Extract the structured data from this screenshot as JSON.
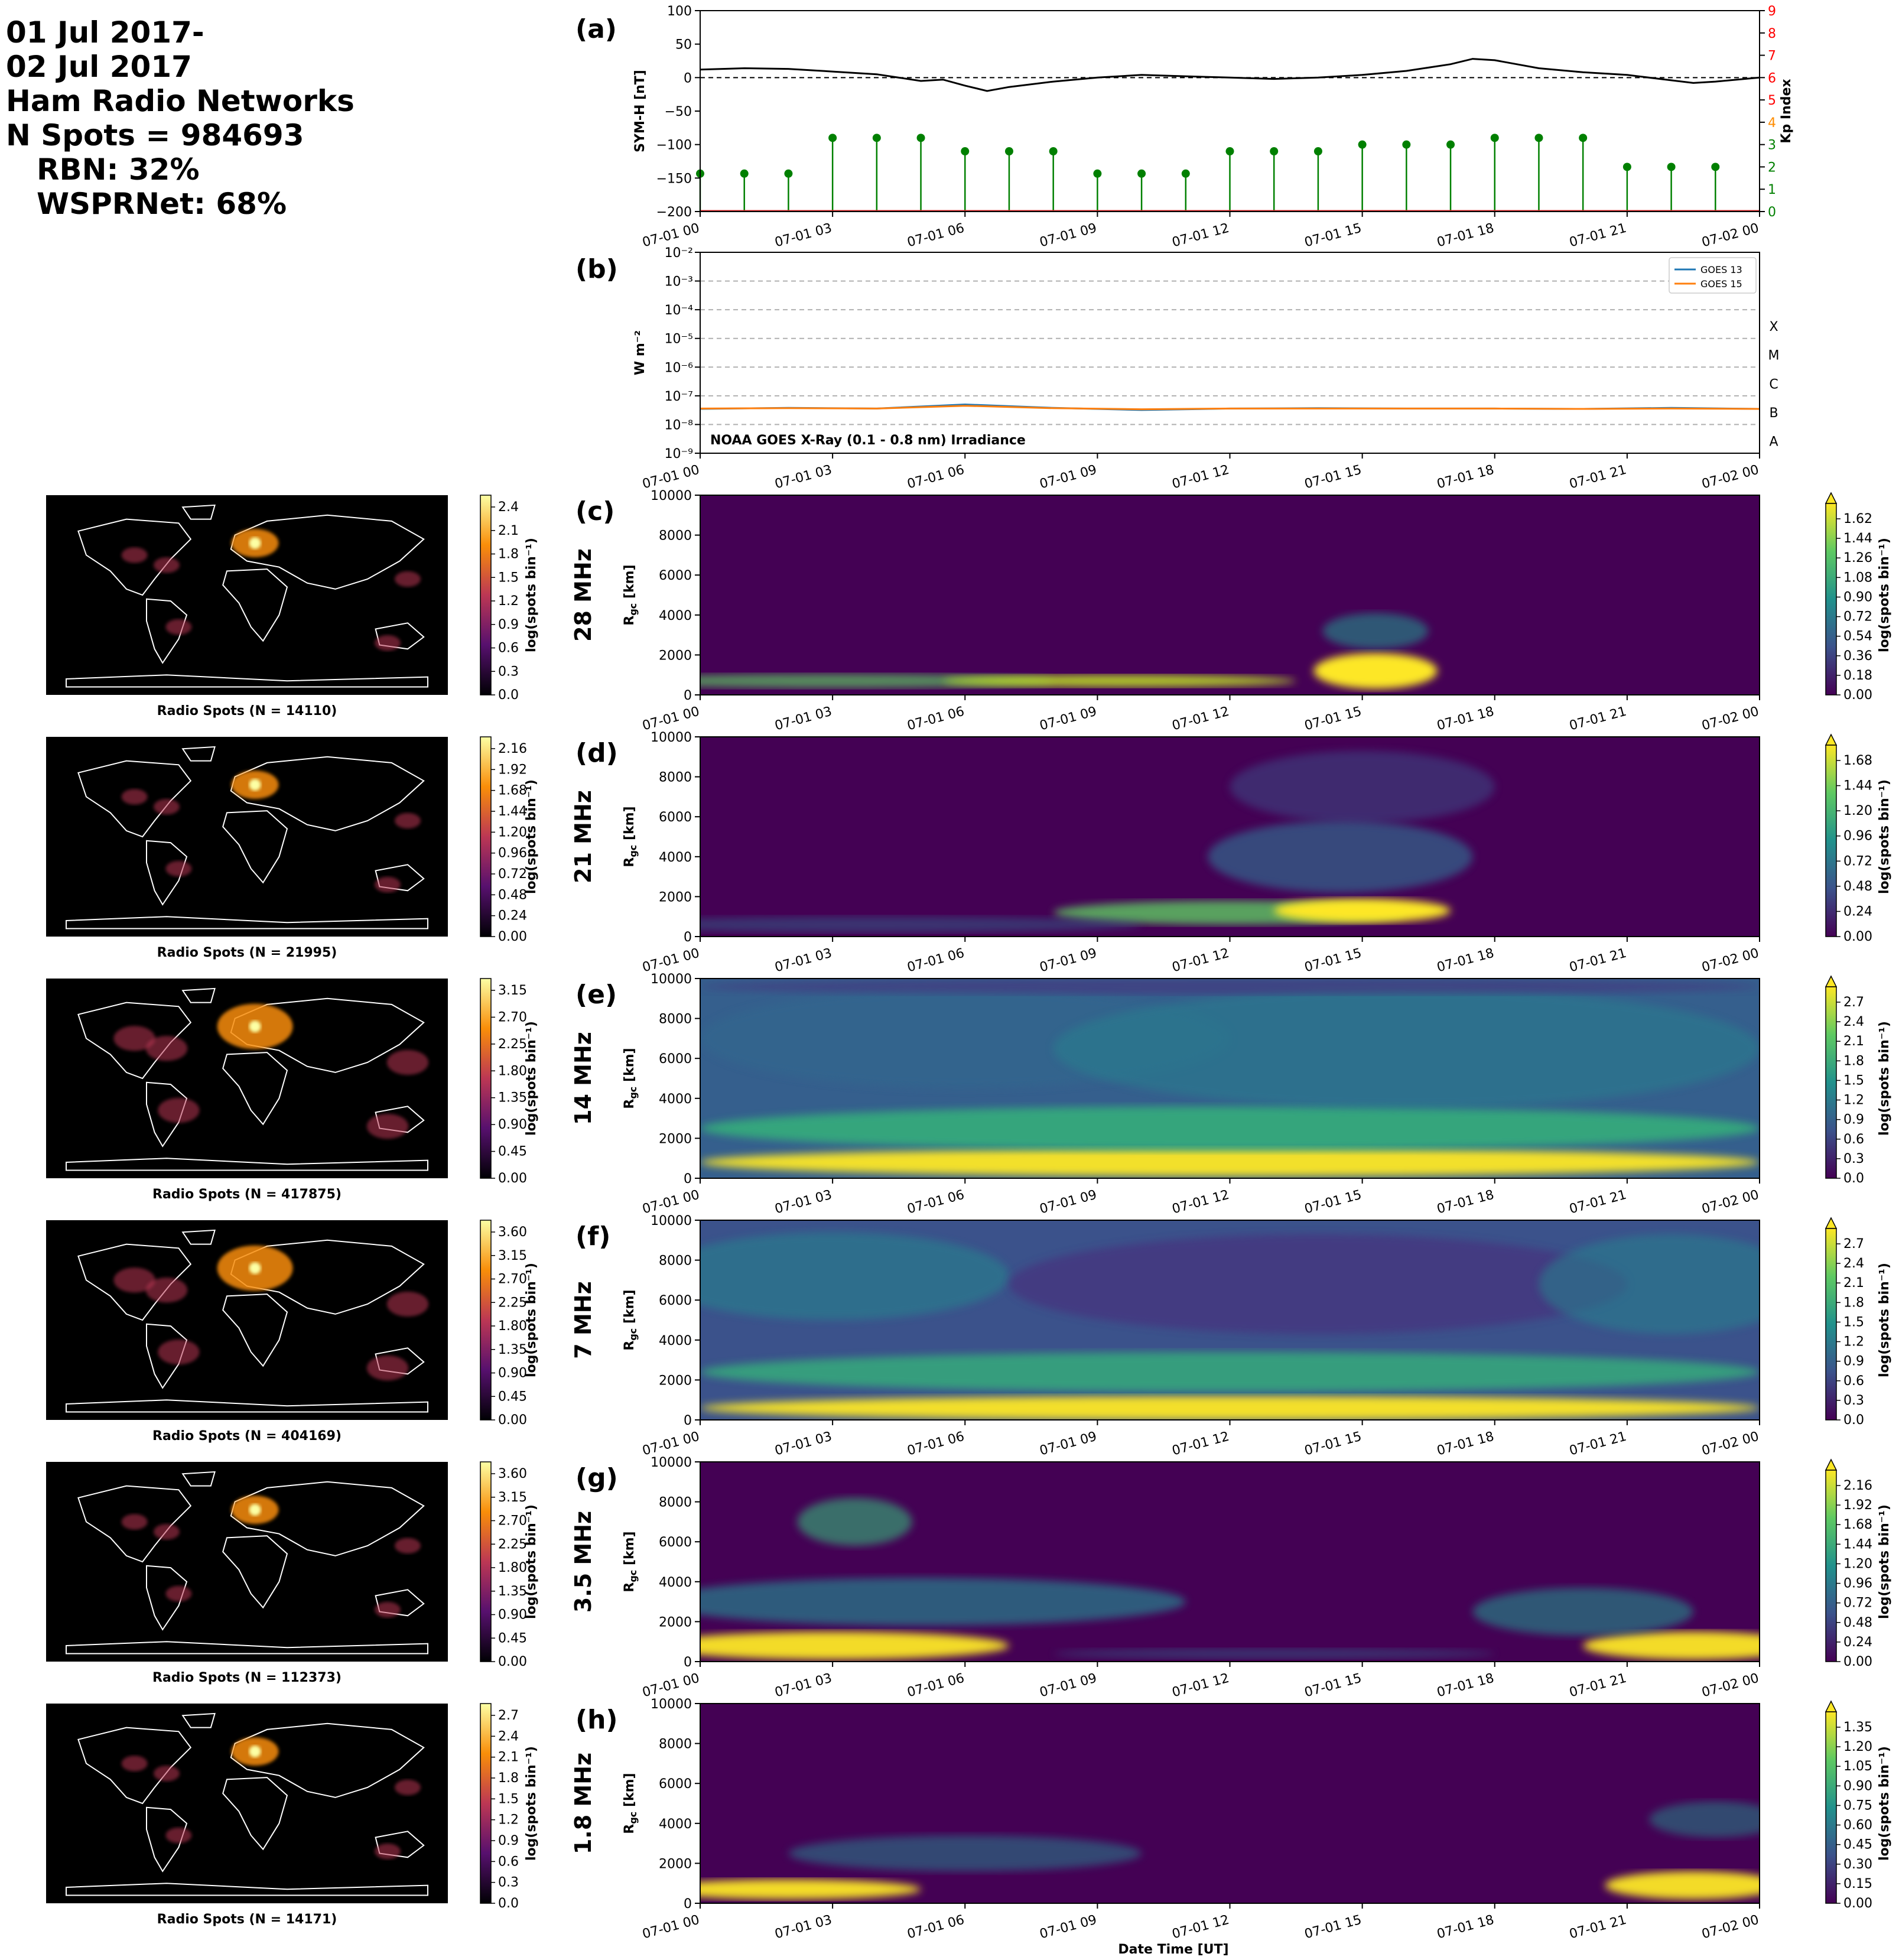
{
  "header": {
    "lines": [
      "01 Jul 2017-",
      "02 Jul 2017",
      "Ham Radio Networks",
      "N Spots = 984693",
      "RBN: 32%",
      "WSPRNet: 68%"
    ]
  },
  "time_ticks": [
    "07-01 00",
    "07-01 03",
    "07-01 06",
    "07-01 09",
    "07-01 12",
    "07-01 15",
    "07-01 18",
    "07-01 21",
    "07-02 00"
  ],
  "xlabel": "Date Time [UT]",
  "colors": {
    "symh_line": "#000000",
    "kp_stem": "#008000",
    "goes13": "#1f77b4",
    "goes15": "#ff7f0e",
    "kp_axis_green": "#008000",
    "kp_axis_orange": "#ff8c00",
    "kp_axis_red": "#ff0000"
  },
  "chart_data": [
    {
      "id": "a",
      "panel_label": "(a)",
      "type": "line",
      "ylabel": "SYM-H [nT]",
      "ylim": [
        -200,
        100
      ],
      "yticks": [
        100,
        50,
        0,
        -50,
        -100,
        -150,
        -200
      ],
      "x_hours": [
        0,
        1,
        2,
        3,
        4,
        5,
        5.5,
        6,
        6.5,
        7,
        8,
        9,
        10,
        11,
        12,
        13,
        14,
        15,
        16,
        17,
        17.5,
        18,
        18.5,
        19,
        20,
        21,
        22,
        22.5,
        23,
        24
      ],
      "symh": [
        12,
        14,
        13,
        9,
        5,
        -5,
        -3,
        -12,
        -20,
        -14,
        -6,
        0,
        4,
        2,
        0,
        -2,
        0,
        4,
        10,
        20,
        28,
        26,
        20,
        14,
        8,
        4,
        -4,
        -8,
        -6,
        0
      ],
      "y2label": "Kp Index",
      "y2lim": [
        0,
        9
      ],
      "y2ticks": [
        0,
        1,
        2,
        3,
        4,
        5,
        6,
        7,
        8,
        9
      ],
      "kp_times": [
        0,
        1,
        2,
        3,
        4,
        5,
        6,
        7,
        8,
        9,
        10,
        11,
        12,
        13,
        14,
        15,
        16,
        17,
        18,
        19,
        20,
        21,
        22,
        23
      ],
      "kp_values": [
        1.7,
        1.7,
        1.7,
        3.3,
        3.3,
        3.3,
        2.7,
        2.7,
        2.7,
        1.7,
        1.7,
        1.7,
        2.7,
        2.7,
        2.7,
        3.0,
        3.0,
        3.0,
        3.3,
        3.3,
        3.3,
        2.0,
        2.0,
        2.0
      ]
    },
    {
      "id": "b",
      "panel_label": "(b)",
      "type": "line",
      "ylabel": "W m⁻²",
      "yscale": "log",
      "ylim": [
        1e-09,
        0.01
      ],
      "ytick_labels": [
        "10⁻²",
        "10⁻³",
        "10⁻⁴",
        "10⁻⁵",
        "10⁻⁶",
        "10⁻⁷",
        "10⁻⁸",
        "10⁻⁹"
      ],
      "flare_classes": [
        "X",
        "M",
        "C",
        "B",
        "A"
      ],
      "annotation": "NOAA GOES X-Ray (0.1 - 0.8 nm) Irradiance",
      "legend_position": "top-right",
      "series": [
        {
          "name": "GOES 13",
          "x_hours": [
            0,
            2,
            4,
            6,
            8,
            10,
            12,
            14,
            16,
            18,
            20,
            22,
            24
          ],
          "values": [
            3.5e-08,
            3.8e-08,
            3.6e-08,
            5e-08,
            3.8e-08,
            3.2e-08,
            3.6e-08,
            3.7e-08,
            3.6e-08,
            3.6e-08,
            3.5e-08,
            3.8e-08,
            3.5e-08
          ]
        },
        {
          "name": "GOES 15",
          "x_hours": [
            0,
            2,
            4,
            6,
            8,
            10,
            12,
            14,
            16,
            18,
            20,
            22,
            24
          ],
          "values": [
            3.6e-08,
            3.7e-08,
            3.6e-08,
            4.5e-08,
            3.7e-08,
            3.4e-08,
            3.6e-08,
            3.6e-08,
            3.6e-08,
            3.6e-08,
            3.5e-08,
            3.6e-08,
            3.5e-08
          ]
        }
      ]
    },
    {
      "id": "c",
      "panel_label": "(c)",
      "type": "heatmap",
      "band": "28 MHz",
      "map_caption": "Radio Spots (N = 14110)",
      "map_cbar_ticks": [
        "0.0",
        "0.3",
        "0.6",
        "0.9",
        "1.2",
        "1.5",
        "1.8",
        "2.1",
        "2.4"
      ],
      "cbar_ticks": [
        "0.00",
        "0.18",
        "0.36",
        "0.54",
        "0.72",
        "0.90",
        "1.08",
        "1.26",
        "1.44",
        "1.62"
      ],
      "ylabel": "R_gc [km]",
      "ylim": [
        0,
        10000
      ],
      "yticks": [
        0,
        2000,
        4000,
        6000,
        8000,
        10000
      ],
      "cbar_label": "log(spots bin⁻¹)"
    },
    {
      "id": "d",
      "panel_label": "(d)",
      "type": "heatmap",
      "band": "21 MHz",
      "map_caption": "Radio Spots (N = 21995)",
      "map_cbar_ticks": [
        "0.00",
        "0.24",
        "0.48",
        "0.72",
        "0.96",
        "1.20",
        "1.44",
        "1.68",
        "1.92",
        "2.16"
      ],
      "cbar_ticks": [
        "0.00",
        "0.24",
        "0.48",
        "0.72",
        "0.96",
        "1.20",
        "1.44",
        "1.68"
      ],
      "ylabel": "R_gc [km]",
      "ylim": [
        0,
        10000
      ],
      "yticks": [
        0,
        2000,
        4000,
        6000,
        8000,
        10000
      ],
      "cbar_label": "log(spots bin⁻¹)"
    },
    {
      "id": "e",
      "panel_label": "(e)",
      "type": "heatmap",
      "band": "14 MHz",
      "map_caption": "Radio Spots (N = 417875)",
      "map_cbar_ticks": [
        "0.00",
        "0.45",
        "0.90",
        "1.35",
        "1.80",
        "2.25",
        "2.70",
        "3.15"
      ],
      "cbar_ticks": [
        "0.0",
        "0.3",
        "0.6",
        "0.9",
        "1.2",
        "1.5",
        "1.8",
        "2.1",
        "2.4",
        "2.7"
      ],
      "ylabel": "R_gc [km]",
      "ylim": [
        0,
        10000
      ],
      "yticks": [
        0,
        2000,
        4000,
        6000,
        8000,
        10000
      ],
      "cbar_label": "log(spots bin⁻¹)"
    },
    {
      "id": "f",
      "panel_label": "(f)",
      "type": "heatmap",
      "band": "7 MHz",
      "map_caption": "Radio Spots (N = 404169)",
      "map_cbar_ticks": [
        "0.00",
        "0.45",
        "0.90",
        "1.35",
        "1.80",
        "2.25",
        "2.70",
        "3.15",
        "3.60"
      ],
      "cbar_ticks": [
        "0.0",
        "0.3",
        "0.6",
        "0.9",
        "1.2",
        "1.5",
        "1.8",
        "2.1",
        "2.4",
        "2.7"
      ],
      "ylabel": "R_gc [km]",
      "ylim": [
        0,
        10000
      ],
      "yticks": [
        0,
        2000,
        4000,
        6000,
        8000,
        10000
      ],
      "cbar_label": "log(spots bin⁻¹)"
    },
    {
      "id": "g",
      "panel_label": "(g)",
      "type": "heatmap",
      "band": "3.5 MHz",
      "map_caption": "Radio Spots (N = 112373)",
      "map_cbar_ticks": [
        "0.00",
        "0.45",
        "0.90",
        "1.35",
        "1.80",
        "2.25",
        "2.70",
        "3.15",
        "3.60"
      ],
      "cbar_ticks": [
        "0.00",
        "0.24",
        "0.48",
        "0.72",
        "0.96",
        "1.20",
        "1.44",
        "1.68",
        "1.92",
        "2.16"
      ],
      "ylabel": "R_gc [km]",
      "ylim": [
        0,
        10000
      ],
      "yticks": [
        0,
        2000,
        4000,
        6000,
        8000,
        10000
      ],
      "cbar_label": "log(spots bin⁻¹)"
    },
    {
      "id": "h",
      "panel_label": "(h)",
      "type": "heatmap",
      "band": "1.8 MHz",
      "map_caption": "Radio Spots (N = 14171)",
      "map_cbar_ticks": [
        "0.0",
        "0.3",
        "0.6",
        "0.9",
        "1.2",
        "1.5",
        "1.8",
        "2.1",
        "2.4",
        "2.7"
      ],
      "cbar_ticks": [
        "0.00",
        "0.15",
        "0.30",
        "0.45",
        "0.60",
        "0.75",
        "0.90",
        "1.05",
        "1.20",
        "1.35"
      ],
      "ylabel": "R_gc [km]",
      "ylim": [
        0,
        10000
      ],
      "yticks": [
        0,
        2000,
        4000,
        6000,
        8000,
        10000
      ],
      "cbar_label": "log(spots bin⁻¹)"
    }
  ]
}
